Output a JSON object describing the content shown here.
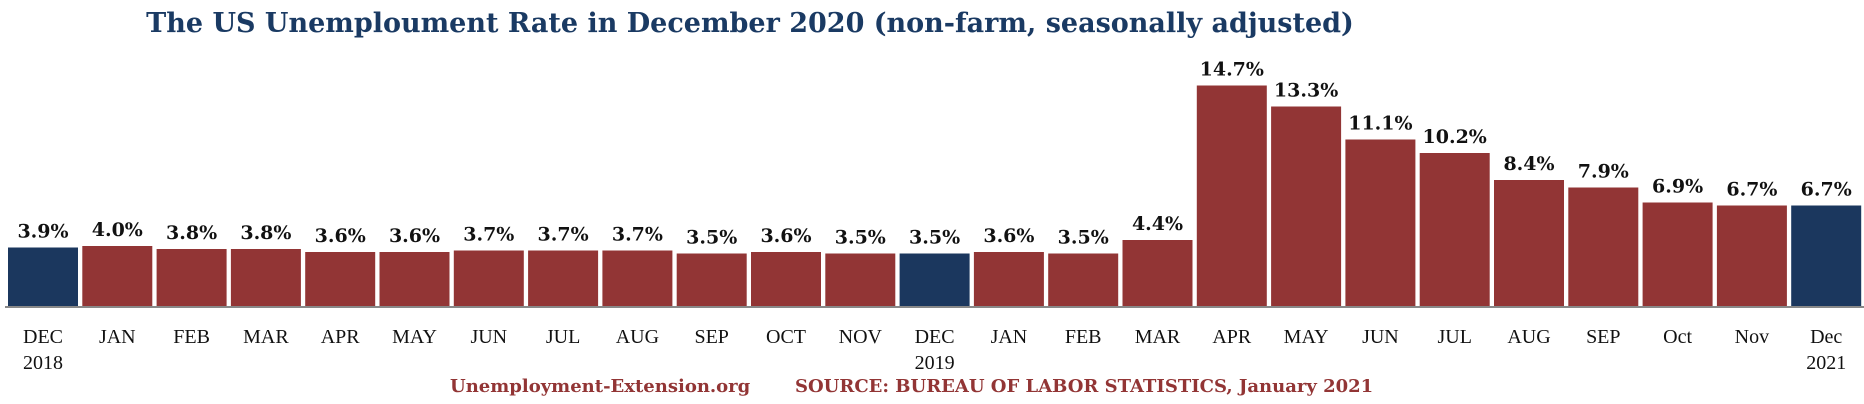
{
  "chart_data": {
    "type": "bar",
    "title": "The US Unemploument Rate in December 2020 (non-farm, seasonally adjusted)",
    "categories": [
      "DEC\n2018",
      "JAN",
      "FEB",
      "MAR",
      "APR",
      "MAY",
      "JUN",
      "JUL",
      "AUG",
      "SEP",
      "OCT",
      "NOV",
      "DEC\n2019",
      "JAN",
      "FEB",
      "MAR",
      "APR",
      "MAY",
      "JUN",
      "JUL",
      "AUG",
      "SEP",
      "Oct",
      "Nov",
      "Dec\n2021"
    ],
    "values": [
      3.9,
      4.0,
      3.8,
      3.8,
      3.6,
      3.6,
      3.7,
      3.7,
      3.7,
      3.5,
      3.6,
      3.5,
      3.5,
      3.6,
      3.5,
      4.4,
      14.7,
      13.3,
      11.1,
      10.2,
      8.4,
      7.9,
      6.9,
      6.7,
      6.7
    ],
    "labels": [
      "3.9%",
      "4.0%",
      "3.8%",
      "3.8%",
      "3.6%",
      "3.6%",
      "3.7%",
      "3.7%",
      "3.7%",
      "3.5%",
      "3.6%",
      "3.5%",
      "3.5%",
      "3.6%",
      "3.5%",
      "4.4%",
      "14.7%",
      "13.3%",
      "11.1%",
      "10.2%",
      "8.4%",
      "7.9%",
      "6.9%",
      "6.7%",
      "6.7%"
    ],
    "highlight": [
      true,
      false,
      false,
      false,
      false,
      false,
      false,
      false,
      false,
      false,
      false,
      false,
      true,
      false,
      false,
      false,
      false,
      false,
      false,
      false,
      false,
      false,
      false,
      false,
      true
    ],
    "colors": {
      "bar": "#923535",
      "highlight": "#1b375e",
      "label": "#111111"
    }
  },
  "footer": {
    "site": "Unemployment-Extension.org",
    "source": "SOURCE: BUREAU OF LABOR STATISTICS, January 2021"
  }
}
